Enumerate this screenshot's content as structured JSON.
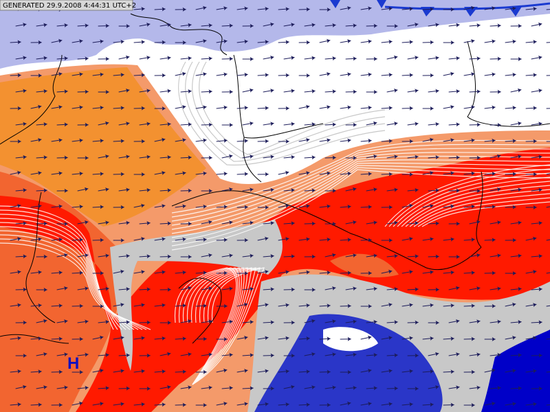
{
  "header": {
    "timestamp": "GENERATED 29.9.2008 4:44:31 UTC+2"
  },
  "map": {
    "pressure_labels": [
      "H"
    ]
  }
}
